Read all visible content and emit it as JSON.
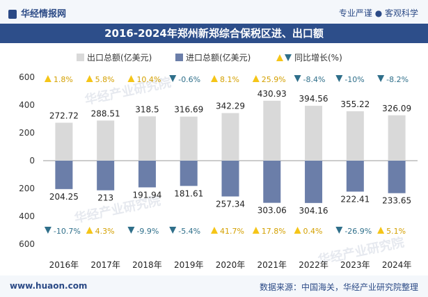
{
  "header": {
    "logo_text": "华经情报网",
    "tagline": "专业严谨 ● 客观科学"
  },
  "footer": {
    "site": "www.huaon.com",
    "source": "数据来源：中国海关，华经产业研究院整理"
  },
  "watermark": "华经产业研究院",
  "colors": {
    "export": "#d9d9d9",
    "import": "#6b7ea9",
    "growth_up": "#f5c518",
    "growth_down": "#2f6f8a",
    "title_bg": "#2d4e8a"
  },
  "chart_data": {
    "type": "bar",
    "title": "2016-2024年郑州新郑综合保税区进、出口额",
    "categories": [
      "2016年",
      "2017年",
      "2018年",
      "2019年",
      "2020年",
      "2021年",
      "2022年",
      "2023年",
      "2024年"
    ],
    "series": [
      {
        "name": "出口总额(亿美元)",
        "values": [
          272.72,
          288.51,
          318.5,
          316.69,
          342.29,
          430.93,
          394.56,
          355.22,
          326.09
        ],
        "direction": "up"
      },
      {
        "name": "进口总额(亿美元)",
        "values": [
          204.25,
          213,
          191.94,
          181.61,
          257.34,
          303.06,
          304.16,
          222.41,
          233.65
        ],
        "direction": "down"
      }
    ],
    "growth_legend": "同比增长(%)",
    "export_growth": [
      "1.8%",
      "5.8%",
      "10.4%",
      "-0.6%",
      "8.1%",
      "25.9%",
      "-8.4%",
      "-10%",
      "-8.2%"
    ],
    "import_growth": [
      "-10.7%",
      "4.3%",
      "-9.9%",
      "-5.4%",
      "41.7%",
      "17.8%",
      "0.4%",
      "-26.9%",
      "5.1%"
    ],
    "y_ticks": [
      "600",
      "400",
      "200",
      "0",
      "200",
      "400",
      "600"
    ],
    "ylim": [
      -600,
      600
    ],
    "legend_position": "top-center"
  }
}
